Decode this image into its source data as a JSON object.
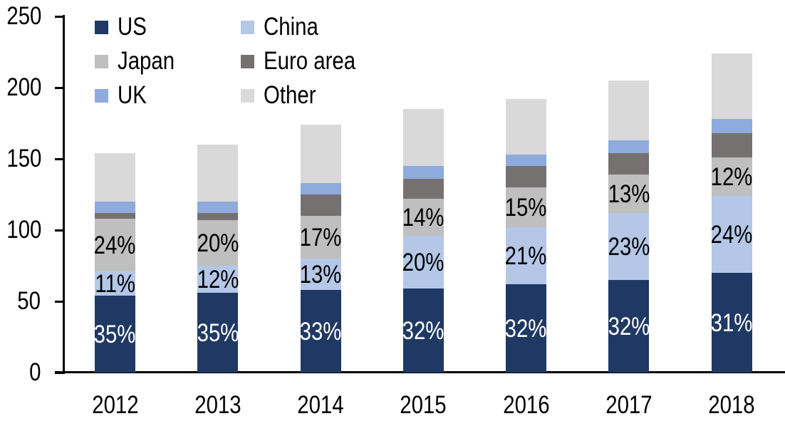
{
  "chart_data": {
    "type": "bar",
    "variant": "stacked-column",
    "title": "",
    "categories": [
      "2012",
      "2013",
      "2014",
      "2015",
      "2016",
      "2017",
      "2018"
    ],
    "series": [
      {
        "name": "US",
        "color": "#1F3864",
        "values": [
          54,
          56,
          58,
          59,
          62,
          65,
          70
        ],
        "labels": [
          "35%",
          "35%",
          "33%",
          "32%",
          "32%",
          "32%",
          "31%"
        ],
        "label_color": "#FFFFFF"
      },
      {
        "name": "China",
        "color": "#B4C7E7",
        "values": [
          17,
          19,
          22,
          37,
          40,
          47,
          54
        ],
        "labels": [
          "11%",
          "12%",
          "13%",
          "20%",
          "21%",
          "23%",
          "24%"
        ],
        "label_color": "#000000"
      },
      {
        "name": "Japan",
        "color": "#BFBFBF",
        "values": [
          37,
          32,
          30,
          26,
          28,
          27,
          27
        ],
        "labels": [
          "24%",
          "20%",
          "17%",
          "14%",
          "15%",
          "13%",
          "12%"
        ],
        "label_color": "#000000"
      },
      {
        "name": "Euro area",
        "color": "#767171",
        "values": [
          4,
          5,
          15,
          14,
          15,
          15,
          17
        ]
      },
      {
        "name": "UK",
        "color": "#8FAADC",
        "values": [
          8,
          8,
          8,
          9,
          8,
          9,
          10
        ]
      },
      {
        "name": "Other",
        "color": "#D9D9D9",
        "values": [
          34,
          40,
          41,
          40,
          39,
          42,
          46
        ]
      }
    ],
    "totals_approx": [
      154,
      160,
      174,
      185,
      192,
      205,
      224
    ],
    "y_axis": {
      "min": 0,
      "max": 250,
      "tick_interval": 50,
      "tick_labels": [
        "0",
        "50",
        "100",
        "150",
        "200",
        "250"
      ]
    },
    "xlabel": "",
    "ylabel": "",
    "legend": {
      "position": "top-left",
      "columns": 2,
      "row_order": [
        "US",
        "China",
        "Japan",
        "Euro area",
        "UK",
        "Other"
      ]
    },
    "grid": false,
    "axis_color": "#000000",
    "background_color": "#FFFFFF"
  }
}
